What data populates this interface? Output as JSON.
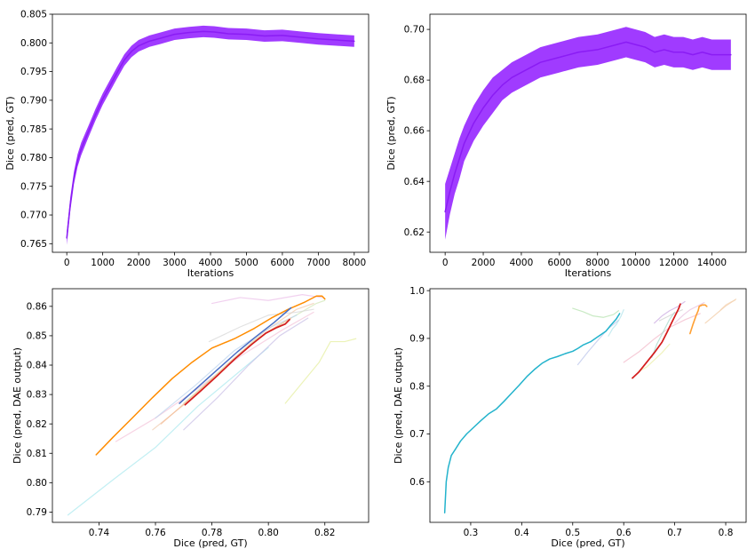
{
  "chart_data": [
    {
      "type": "area",
      "xlabel": "Iterations",
      "ylabel": "Dice (pred, GT)",
      "xlim": [
        -400,
        8400
      ],
      "ylim": [
        0.7635,
        0.805
      ],
      "xticks": [
        0,
        1000,
        2000,
        3000,
        4000,
        5000,
        6000,
        7000,
        8000
      ],
      "xtick_labels": [
        "0",
        "1000",
        "2000",
        "3000",
        "4000",
        "5000",
        "6000",
        "7000",
        "8000"
      ],
      "yticks": [
        0.765,
        0.77,
        0.775,
        0.78,
        0.785,
        0.79,
        0.795,
        0.8,
        0.805
      ],
      "ytick_labels": [
        "0.765",
        "0.770",
        "0.775",
        "0.780",
        "0.785",
        "0.790",
        "0.795",
        "0.800",
        "0.805"
      ],
      "grid": false,
      "series": [
        {
          "color": "#8a1cf4",
          "band_color": "#9b30ff",
          "x": [
            0,
            100,
            200,
            300,
            400,
            600,
            800,
            1000,
            1200,
            1400,
            1600,
            1800,
            2000,
            2300,
            2600,
            3000,
            3400,
            3800,
            4100,
            4500,
            5000,
            5500,
            6000,
            6500,
            7000,
            7500,
            8000
          ],
          "y": [
            0.766,
            0.772,
            0.7765,
            0.7795,
            0.7815,
            0.7845,
            0.7875,
            0.7902,
            0.7925,
            0.7948,
            0.797,
            0.7985,
            0.7995,
            0.8003,
            0.8008,
            0.8015,
            0.8018,
            0.802,
            0.8019,
            0.8016,
            0.8015,
            0.8012,
            0.8013,
            0.801,
            0.8007,
            0.8005,
            0.8003
          ],
          "band_halfwidth": [
            0.0012,
            0.0012,
            0.0011,
            0.0011,
            0.0011,
            0.001,
            0.001,
            0.001,
            0.001,
            0.001,
            0.001,
            0.001,
            0.001,
            0.001,
            0.001,
            0.001,
            0.001,
            0.001,
            0.001,
            0.001,
            0.001,
            0.001,
            0.001,
            0.001,
            0.001,
            0.001,
            0.001
          ]
        }
      ]
    },
    {
      "type": "area",
      "xlabel": "Iterations",
      "ylabel": "Dice (pred, GT)",
      "xlim": [
        -800,
        15800
      ],
      "ylim": [
        0.612,
        0.706
      ],
      "xticks": [
        0,
        2000,
        4000,
        6000,
        8000,
        10000,
        12000,
        14000
      ],
      "xtick_labels": [
        "0",
        "2000",
        "4000",
        "6000",
        "8000",
        "10000",
        "12000",
        "14000"
      ],
      "yticks": [
        0.62,
        0.64,
        0.66,
        0.68,
        0.7
      ],
      "ytick_labels": [
        "0.62",
        "0.64",
        "0.66",
        "0.68",
        "0.70"
      ],
      "grid": false,
      "series": [
        {
          "color": "#8a1cf4",
          "band_color": "#9b30ff",
          "x": [
            0,
            250,
            500,
            750,
            1000,
            1500,
            2000,
            2500,
            3000,
            3500,
            4000,
            5000,
            6000,
            7000,
            8000,
            9000,
            9500,
            10000,
            10500,
            11000,
            11500,
            12000,
            12500,
            13000,
            13500,
            14000,
            14500,
            15000
          ],
          "y": [
            0.628,
            0.636,
            0.643,
            0.649,
            0.655,
            0.663,
            0.669,
            0.674,
            0.678,
            0.681,
            0.683,
            0.687,
            0.689,
            0.691,
            0.692,
            0.694,
            0.695,
            0.694,
            0.693,
            0.691,
            0.692,
            0.691,
            0.691,
            0.69,
            0.691,
            0.69,
            0.69,
            0.69
          ],
          "band_halfwidth": [
            0.011,
            0.009,
            0.008,
            0.008,
            0.007,
            0.007,
            0.007,
            0.007,
            0.006,
            0.006,
            0.006,
            0.006,
            0.006,
            0.006,
            0.006,
            0.006,
            0.006,
            0.006,
            0.006,
            0.006,
            0.006,
            0.006,
            0.006,
            0.006,
            0.006,
            0.006,
            0.006,
            0.006
          ]
        }
      ]
    },
    {
      "type": "line",
      "xlabel": "Dice (pred, GT)",
      "ylabel": "Dice (pred, DAE output)",
      "xlim": [
        0.7235,
        0.8355
      ],
      "ylim": [
        0.7865,
        0.866
      ],
      "xticks": [
        0.74,
        0.76,
        0.78,
        0.8,
        0.82
      ],
      "xtick_labels": [
        "0.74",
        "0.76",
        "0.78",
        "0.80",
        "0.82"
      ],
      "yticks": [
        0.79,
        0.8,
        0.81,
        0.82,
        0.83,
        0.84,
        0.85,
        0.86
      ],
      "ytick_labels": [
        "0.79",
        "0.80",
        "0.81",
        "0.82",
        "0.83",
        "0.84",
        "0.85",
        "0.86"
      ],
      "grid": false,
      "series": [
        {
          "color": "#aee9ef",
          "opacity": 0.75,
          "width": 1.2,
          "x": [
            0.729,
            0.745,
            0.76,
            0.775,
            0.79,
            0.8
          ],
          "y": [
            0.789,
            0.801,
            0.812,
            0.826,
            0.838,
            0.846
          ]
        },
        {
          "color": "#e6efa0",
          "opacity": 0.75,
          "width": 1.2,
          "x": [
            0.806,
            0.812,
            0.818,
            0.822,
            0.827,
            0.831
          ],
          "y": [
            0.827,
            0.834,
            0.841,
            0.848,
            0.848,
            0.849
          ]
        },
        {
          "color": "#f3c2d8",
          "opacity": 0.7,
          "width": 1.2,
          "x": [
            0.746,
            0.76,
            0.775,
            0.79,
            0.805,
            0.816
          ],
          "y": [
            0.814,
            0.822,
            0.832,
            0.843,
            0.852,
            0.858
          ]
        },
        {
          "color": "#c8bde6",
          "opacity": 0.7,
          "width": 1.2,
          "x": [
            0.77,
            0.782,
            0.793,
            0.804,
            0.814
          ],
          "y": [
            0.818,
            0.829,
            0.84,
            0.85,
            0.856
          ]
        },
        {
          "color": "#f0c7a8",
          "opacity": 0.7,
          "width": 1.2,
          "x": [
            0.759,
            0.772,
            0.785,
            0.798,
            0.81,
            0.816
          ],
          "y": [
            0.818,
            0.828,
            0.84,
            0.851,
            0.859,
            0.861
          ]
        },
        {
          "color": "#cfe5b2",
          "opacity": 0.7,
          "width": 1.2,
          "x": [
            0.77,
            0.783,
            0.796,
            0.808,
            0.817,
            0.82
          ],
          "y": [
            0.827,
            0.838,
            0.849,
            0.856,
            0.861,
            0.862
          ]
        },
        {
          "color": "#b9d1ee",
          "opacity": 0.7,
          "width": 1.2,
          "x": [
            0.76,
            0.774,
            0.788,
            0.801,
            0.81
          ],
          "y": [
            0.822,
            0.833,
            0.845,
            0.853,
            0.857
          ]
        },
        {
          "color": "#e9b8e6",
          "opacity": 0.65,
          "width": 1.2,
          "x": [
            0.78,
            0.79,
            0.8,
            0.812,
            0.819
          ],
          "y": [
            0.861,
            0.863,
            0.862,
            0.864,
            0.863
          ]
        },
        {
          "color": "#d6d6d6",
          "opacity": 0.7,
          "width": 1.2,
          "x": [
            0.779,
            0.79,
            0.8,
            0.81,
            0.816
          ],
          "y": [
            0.848,
            0.853,
            0.857,
            0.858,
            0.859
          ]
        },
        {
          "color": "#f5b58c",
          "opacity": 0.65,
          "width": 1.2,
          "x": [
            0.762,
            0.775,
            0.788,
            0.799,
            0.808
          ],
          "y": [
            0.82,
            0.831,
            0.842,
            0.851,
            0.856
          ]
        },
        {
          "color": "#ff8c00",
          "opacity": 1,
          "width": 1.5,
          "x": [
            0.739,
            0.745,
            0.752,
            0.759,
            0.766,
            0.773,
            0.78,
            0.788,
            0.795,
            0.801,
            0.807,
            0.813,
            0.817,
            0.819,
            0.82
          ],
          "y": [
            0.8095,
            0.8155,
            0.8222,
            0.829,
            0.8355,
            0.841,
            0.8458,
            0.849,
            0.8525,
            0.856,
            0.859,
            0.8615,
            0.8635,
            0.8635,
            0.8625
          ]
        },
        {
          "color": "#4a6fc4",
          "opacity": 1,
          "width": 1.5,
          "x": [
            0.7685,
            0.775,
            0.782,
            0.789,
            0.796,
            0.802,
            0.808
          ],
          "y": [
            0.827,
            0.8325,
            0.8385,
            0.8445,
            0.85,
            0.8545,
            0.8595
          ]
        },
        {
          "color": "#d41c1c",
          "opacity": 1,
          "width": 1.7,
          "x": [
            0.7705,
            0.776,
            0.782,
            0.788,
            0.794,
            0.799,
            0.803,
            0.806,
            0.8075
          ],
          "y": [
            0.8265,
            0.8312,
            0.8365,
            0.842,
            0.847,
            0.8508,
            0.8528,
            0.854,
            0.8555
          ]
        }
      ]
    },
    {
      "type": "line",
      "xlabel": "Dice (pred, GT)",
      "ylabel": "Dice (pred, DAE output)",
      "xlim": [
        0.22,
        0.84
      ],
      "ylim": [
        0.515,
        1.004
      ],
      "xticks": [
        0.3,
        0.4,
        0.5,
        0.6,
        0.7,
        0.8
      ],
      "xtick_labels": [
        "0.3",
        "0.4",
        "0.5",
        "0.6",
        "0.7",
        "0.8"
      ],
      "yticks": [
        0.6,
        0.7,
        0.8,
        0.9,
        1.0
      ],
      "ytick_labels": [
        "0.6",
        "0.7",
        "0.8",
        "0.9",
        "1.0"
      ],
      "grid": false,
      "series": [
        {
          "color": "#b7e3b0",
          "opacity": 0.75,
          "width": 1.2,
          "x": [
            0.5,
            0.52,
            0.54,
            0.56,
            0.58,
            0.59
          ],
          "y": [
            0.963,
            0.956,
            0.947,
            0.944,
            0.95,
            0.958
          ]
        },
        {
          "color": "#f2b6c8",
          "opacity": 0.7,
          "width": 1.2,
          "x": [
            0.6,
            0.63,
            0.66,
            0.69,
            0.72,
            0.75
          ],
          "y": [
            0.85,
            0.872,
            0.899,
            0.923,
            0.939,
            0.952
          ]
        },
        {
          "color": "#b9c3ea",
          "opacity": 0.7,
          "width": 1.2,
          "x": [
            0.51,
            0.53,
            0.55,
            0.57,
            0.59
          ],
          "y": [
            0.845,
            0.872,
            0.897,
            0.921,
            0.938
          ]
        },
        {
          "color": "#f1c79e",
          "opacity": 0.7,
          "width": 1.2,
          "x": [
            0.76,
            0.78,
            0.8,
            0.82
          ],
          "y": [
            0.932,
            0.95,
            0.968,
            0.982
          ]
        },
        {
          "color": "#e9eea2",
          "opacity": 0.7,
          "width": 1.2,
          "x": [
            0.628,
            0.645,
            0.66,
            0.675,
            0.69
          ],
          "y": [
            0.83,
            0.84,
            0.855,
            0.87,
            0.888
          ]
        },
        {
          "color": "#c9a6e0",
          "opacity": 0.7,
          "width": 1.2,
          "x": [
            0.66,
            0.675,
            0.69,
            0.705,
            0.72
          ],
          "y": [
            0.932,
            0.947,
            0.958,
            0.966,
            0.977
          ]
        },
        {
          "color": "#9fd9c9",
          "opacity": 0.7,
          "width": 1.2,
          "x": [
            0.655,
            0.665,
            0.678,
            0.69,
            0.7
          ],
          "y": [
            0.86,
            0.888,
            0.915,
            0.94,
            0.955
          ]
        },
        {
          "color": "#e5b8da",
          "opacity": 0.65,
          "width": 1.2,
          "x": [
            0.7,
            0.718,
            0.73,
            0.745,
            0.758
          ],
          "y": [
            0.932,
            0.95,
            0.96,
            0.968,
            0.975
          ]
        },
        {
          "color": "#cfcfcf",
          "opacity": 0.7,
          "width": 1.2,
          "x": [
            0.67,
            0.685,
            0.7,
            0.715
          ],
          "y": [
            0.937,
            0.945,
            0.953,
            0.96
          ]
        },
        {
          "color": "#f4d2b1",
          "opacity": 0.65,
          "width": 1.2,
          "x": [
            0.79,
            0.8,
            0.81,
            0.818
          ],
          "y": [
            0.96,
            0.97,
            0.976,
            0.98
          ]
        },
        {
          "color": "#aee3ea",
          "opacity": 0.7,
          "width": 1.2,
          "x": [
            0.57,
            0.578,
            0.586,
            0.594,
            0.6
          ],
          "y": [
            0.905,
            0.92,
            0.93,
            0.945,
            0.96
          ]
        },
        {
          "color": "#ffa033",
          "opacity": 1,
          "width": 1.6,
          "x": [
            0.73,
            0.736,
            0.742,
            0.746,
            0.748,
            0.754,
            0.76,
            0.763
          ],
          "y": [
            0.91,
            0.93,
            0.948,
            0.958,
            0.967,
            0.97,
            0.97,
            0.967
          ]
        },
        {
          "color": "#d41c1c",
          "opacity": 1,
          "width": 1.7,
          "x": [
            0.617,
            0.63,
            0.645,
            0.66,
            0.675,
            0.685,
            0.695,
            0.702,
            0.708,
            0.711
          ],
          "y": [
            0.817,
            0.83,
            0.85,
            0.87,
            0.892,
            0.913,
            0.935,
            0.95,
            0.963,
            0.972
          ]
        },
        {
          "color": "#23b3cc",
          "opacity": 1,
          "width": 1.5,
          "x": [
            0.249,
            0.252,
            0.256,
            0.262,
            0.27,
            0.28,
            0.292,
            0.305,
            0.32,
            0.335,
            0.35,
            0.365,
            0.38,
            0.395,
            0.41,
            0.425,
            0.44,
            0.455,
            0.47,
            0.485,
            0.5,
            0.51,
            0.52,
            0.535,
            0.55,
            0.565,
            0.575,
            0.585,
            0.592
          ],
          "y": [
            0.535,
            0.6,
            0.63,
            0.655,
            0.668,
            0.685,
            0.7,
            0.713,
            0.728,
            0.742,
            0.752,
            0.768,
            0.785,
            0.802,
            0.82,
            0.835,
            0.848,
            0.857,
            0.862,
            0.868,
            0.873,
            0.879,
            0.886,
            0.893,
            0.904,
            0.915,
            0.928,
            0.94,
            0.952
          ]
        }
      ]
    }
  ]
}
